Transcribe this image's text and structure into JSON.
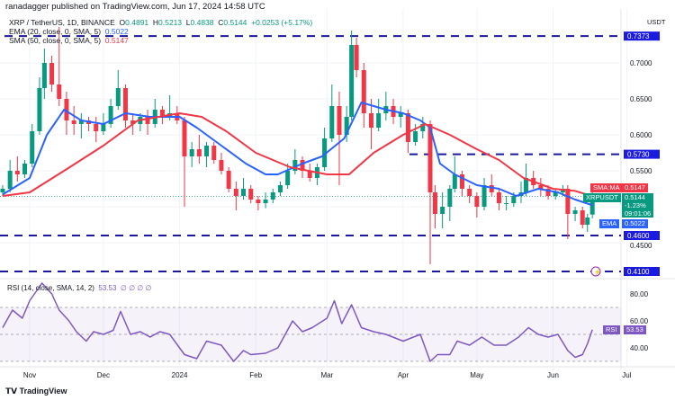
{
  "publisher": "ranadagger published on TradingView.com, Jun 17, 2024 14:58 UTC",
  "legend": {
    "symbol": "XRP / TetherUS, 1D, BINANCE",
    "open_label": "O",
    "open": "0.4891",
    "high_label": "H",
    "high": "0.5213",
    "low_label": "L",
    "low": "0.4838",
    "close_label": "C",
    "close": "0.5144",
    "change": "+0.0253 (+5.17%)",
    "ema_label": "EMA (20, close, 0, SMA, 5)",
    "ema_value": "0.5022",
    "sma_label": "SMA (50, close, 0, SMA, 5)",
    "sma_value": "0.5147",
    "rsi_label": "RSI (14, close, SMA, 14, 2)",
    "rsi_value": "53.53",
    "rsi_extra": "∅ ∅ ∅ ∅"
  },
  "price_axis": {
    "currency": "USDT",
    "ticks": [
      "0.7000",
      "0.6500",
      "0.6000",
      "0.5500",
      "0.4500"
    ],
    "levels": [
      "0.7373",
      "0.5730",
      "0.4600",
      "0.4100"
    ],
    "sma_tag": {
      "label": "SMA:MA",
      "value": "0.5147"
    },
    "price_tag": {
      "label": "XRPUSDT",
      "value": "0.5144",
      "change": "-1.23%",
      "countdown": "09:01:06"
    },
    "ema_tag": {
      "label": "EMA",
      "value": "0.5022"
    }
  },
  "rsi_axis": {
    "ticks": [
      "80.00",
      "60.00",
      "40.00"
    ],
    "tag_label": "RSI",
    "tag_value": "53.53"
  },
  "time_axis": [
    "Nov",
    "Dec",
    "2024",
    "Feb",
    "Mar",
    "Apr",
    "May",
    "Jun",
    "Jul"
  ],
  "footer": "TradingView",
  "colors": {
    "up": "#089981",
    "down": "#f23645",
    "ema": "#2962ff",
    "sma": "#f23645",
    "rsi": "#7e57c2",
    "levels": "#1a1aa0"
  },
  "icons": [
    "flash-event-icon",
    "tradingview-logo-icon"
  ],
  "chart_data": {
    "type": "candlestick",
    "title": "XRP / TetherUS, 1D, BINANCE",
    "ylabel": "USDT",
    "ylim": [
      0.4,
      0.75
    ],
    "grid": true,
    "horizontal_levels": [
      0.7373,
      0.573,
      0.46,
      0.41
    ],
    "last_price": 0.5144,
    "candles_columns": [
      "date",
      "open",
      "high",
      "low",
      "close"
    ],
    "candles": [
      [
        "2023-10-21",
        0.52,
        0.53,
        0.515,
        0.525
      ],
      [
        "2023-10-24",
        0.525,
        0.565,
        0.52,
        0.55
      ],
      [
        "2023-10-27",
        0.55,
        0.57,
        0.535,
        0.545
      ],
      [
        "2023-10-30",
        0.545,
        0.565,
        0.54,
        0.56
      ],
      [
        "2023-11-02",
        0.56,
        0.615,
        0.555,
        0.605
      ],
      [
        "2023-11-05",
        0.605,
        0.68,
        0.6,
        0.665
      ],
      [
        "2023-11-07",
        0.665,
        0.72,
        0.65,
        0.7
      ],
      [
        "2023-11-10",
        0.7,
        0.71,
        0.66,
        0.67
      ],
      [
        "2023-11-13",
        0.67,
        0.75,
        0.64,
        0.65
      ],
      [
        "2023-11-16",
        0.65,
        0.66,
        0.6,
        0.62
      ],
      [
        "2023-11-19",
        0.62,
        0.64,
        0.6,
        0.615
      ],
      [
        "2023-11-22",
        0.615,
        0.63,
        0.595,
        0.62
      ],
      [
        "2023-11-25",
        0.62,
        0.625,
        0.605,
        0.615
      ],
      [
        "2023-11-28",
        0.615,
        0.625,
        0.59,
        0.605
      ],
      [
        "2023-12-01",
        0.605,
        0.63,
        0.6,
        0.615
      ],
      [
        "2023-12-04",
        0.615,
        0.65,
        0.61,
        0.64
      ],
      [
        "2023-12-07",
        0.64,
        0.69,
        0.635,
        0.665
      ],
      [
        "2023-12-10",
        0.665,
        0.67,
        0.61,
        0.62
      ],
      [
        "2023-12-13",
        0.62,
        0.63,
        0.6,
        0.615
      ],
      [
        "2023-12-16",
        0.615,
        0.63,
        0.605,
        0.625
      ],
      [
        "2023-12-19",
        0.625,
        0.635,
        0.6,
        0.615
      ],
      [
        "2023-12-22",
        0.615,
        0.65,
        0.61,
        0.635
      ],
      [
        "2023-12-25",
        0.635,
        0.64,
        0.615,
        0.625
      ],
      [
        "2023-12-28",
        0.625,
        0.655,
        0.62,
        0.63
      ],
      [
        "2023-12-31",
        0.63,
        0.64,
        0.615,
        0.62
      ],
      [
        "2024-01-03",
        0.62,
        0.625,
        0.5,
        0.57
      ],
      [
        "2024-01-06",
        0.57,
        0.59,
        0.555,
        0.58
      ],
      [
        "2024-01-09",
        0.58,
        0.6,
        0.56,
        0.57
      ],
      [
        "2024-01-12",
        0.57,
        0.59,
        0.555,
        0.585
      ],
      [
        "2024-01-15",
        0.585,
        0.59,
        0.56,
        0.565
      ],
      [
        "2024-01-18",
        0.565,
        0.575,
        0.545,
        0.55
      ],
      [
        "2024-01-21",
        0.55,
        0.555,
        0.52,
        0.525
      ],
      [
        "2024-01-24",
        0.525,
        0.535,
        0.495,
        0.515
      ],
      [
        "2024-01-27",
        0.515,
        0.54,
        0.51,
        0.525
      ],
      [
        "2024-01-30",
        0.525,
        0.53,
        0.505,
        0.51
      ],
      [
        "2024-02-02",
        0.51,
        0.515,
        0.495,
        0.505
      ],
      [
        "2024-02-05",
        0.505,
        0.52,
        0.498,
        0.51
      ],
      [
        "2024-02-08",
        0.51,
        0.525,
        0.505,
        0.52
      ],
      [
        "2024-02-11",
        0.52,
        0.535,
        0.515,
        0.53
      ],
      [
        "2024-02-14",
        0.53,
        0.56,
        0.525,
        0.55
      ],
      [
        "2024-02-17",
        0.55,
        0.58,
        0.545,
        0.565
      ],
      [
        "2024-02-20",
        0.565,
        0.57,
        0.54,
        0.55
      ],
      [
        "2024-02-23",
        0.55,
        0.56,
        0.535,
        0.54
      ],
      [
        "2024-02-26",
        0.54,
        0.56,
        0.53,
        0.555
      ],
      [
        "2024-02-29",
        0.555,
        0.61,
        0.55,
        0.595
      ],
      [
        "2024-03-03",
        0.595,
        0.67,
        0.59,
        0.64
      ],
      [
        "2024-03-06",
        0.64,
        0.66,
        0.53,
        0.6
      ],
      [
        "2024-03-09",
        0.6,
        0.64,
        0.59,
        0.625
      ],
      [
        "2024-03-11",
        0.625,
        0.745,
        0.62,
        0.725
      ],
      [
        "2024-03-13",
        0.725,
        0.735,
        0.68,
        0.69
      ],
      [
        "2024-03-16",
        0.69,
        0.7,
        0.61,
        0.63
      ],
      [
        "2024-03-19",
        0.63,
        0.65,
        0.58,
        0.61
      ],
      [
        "2024-03-22",
        0.61,
        0.65,
        0.605,
        0.63
      ],
      [
        "2024-03-25",
        0.63,
        0.66,
        0.62,
        0.64
      ],
      [
        "2024-03-28",
        0.64,
        0.65,
        0.615,
        0.625
      ],
      [
        "2024-03-31",
        0.625,
        0.64,
        0.61,
        0.63
      ],
      [
        "2024-04-03",
        0.63,
        0.635,
        0.575,
        0.59
      ],
      [
        "2024-04-06",
        0.59,
        0.615,
        0.585,
        0.605
      ],
      [
        "2024-04-09",
        0.605,
        0.625,
        0.595,
        0.615
      ],
      [
        "2024-04-12",
        0.615,
        0.62,
        0.42,
        0.52
      ],
      [
        "2024-04-14",
        0.52,
        0.53,
        0.47,
        0.49
      ],
      [
        "2024-04-17",
        0.49,
        0.52,
        0.47,
        0.5
      ],
      [
        "2024-04-20",
        0.5,
        0.53,
        0.48,
        0.525
      ],
      [
        "2024-04-22",
        0.525,
        0.57,
        0.52,
        0.545
      ],
      [
        "2024-04-25",
        0.545,
        0.55,
        0.515,
        0.525
      ],
      [
        "2024-04-28",
        0.525,
        0.53,
        0.505,
        0.515
      ],
      [
        "2024-05-01",
        0.515,
        0.52,
        0.485,
        0.5
      ],
      [
        "2024-05-04",
        0.5,
        0.54,
        0.495,
        0.53
      ],
      [
        "2024-05-07",
        0.53,
        0.545,
        0.515,
        0.52
      ],
      [
        "2024-05-10",
        0.52,
        0.525,
        0.495,
        0.505
      ],
      [
        "2024-05-13",
        0.505,
        0.515,
        0.495,
        0.505
      ],
      [
        "2024-05-16",
        0.505,
        0.52,
        0.5,
        0.515
      ],
      [
        "2024-05-19",
        0.515,
        0.535,
        0.505,
        0.52
      ],
      [
        "2024-05-21",
        0.52,
        0.56,
        0.515,
        0.54
      ],
      [
        "2024-05-24",
        0.54,
        0.55,
        0.525,
        0.53
      ],
      [
        "2024-05-27",
        0.53,
        0.54,
        0.515,
        0.525
      ],
      [
        "2024-05-30",
        0.525,
        0.53,
        0.51,
        0.515
      ],
      [
        "2024-06-02",
        0.515,
        0.525,
        0.51,
        0.52
      ],
      [
        "2024-06-05",
        0.52,
        0.53,
        0.515,
        0.525
      ],
      [
        "2024-06-07",
        0.525,
        0.53,
        0.455,
        0.49
      ],
      [
        "2024-06-10",
        0.49,
        0.5,
        0.48,
        0.495
      ],
      [
        "2024-06-13",
        0.495,
        0.5,
        0.47,
        0.475
      ],
      [
        "2024-06-15",
        0.475,
        0.49,
        0.465,
        0.485
      ],
      [
        "2024-06-17",
        0.4891,
        0.5213,
        0.4838,
        0.5144
      ]
    ],
    "series": [
      {
        "name": "EMA (20, close, 0, SMA, 5)",
        "points": [
          [
            "2023-10-21",
            0.517
          ],
          [
            "2023-11-01",
            0.54
          ],
          [
            "2023-11-08",
            0.6
          ],
          [
            "2023-11-15",
            0.635
          ],
          [
            "2023-11-22",
            0.62
          ],
          [
            "2023-12-01",
            0.615
          ],
          [
            "2023-12-10",
            0.63
          ],
          [
            "2023-12-20",
            0.625
          ],
          [
            "2024-01-01",
            0.625
          ],
          [
            "2024-01-08",
            0.61
          ],
          [
            "2024-01-18",
            0.585
          ],
          [
            "2024-01-28",
            0.56
          ],
          [
            "2024-02-05",
            0.545
          ],
          [
            "2024-02-10",
            0.545
          ],
          [
            "2024-02-20",
            0.56
          ],
          [
            "2024-02-28",
            0.57
          ],
          [
            "2024-03-08",
            0.595
          ],
          [
            "2024-03-15",
            0.645
          ],
          [
            "2024-03-25",
            0.635
          ],
          [
            "2024-04-01",
            0.63
          ],
          [
            "2024-04-08",
            0.62
          ],
          [
            "2024-04-12",
            0.61
          ],
          [
            "2024-04-16",
            0.56
          ],
          [
            "2024-04-22",
            0.545
          ],
          [
            "2024-05-01",
            0.53
          ],
          [
            "2024-05-10",
            0.525
          ],
          [
            "2024-05-17",
            0.515
          ],
          [
            "2024-05-26",
            0.525
          ],
          [
            "2024-06-03",
            0.52
          ],
          [
            "2024-06-10",
            0.51
          ],
          [
            "2024-06-17",
            0.5022
          ]
        ]
      },
      {
        "name": "SMA (50, close, 0, SMA, 5)",
        "points": [
          [
            "2023-10-21",
            0.515
          ],
          [
            "2023-11-01",
            0.52
          ],
          [
            "2023-11-15",
            0.55
          ],
          [
            "2023-12-01",
            0.585
          ],
          [
            "2023-12-15",
            0.62
          ],
          [
            "2024-01-01",
            0.63
          ],
          [
            "2024-01-10",
            0.625
          ],
          [
            "2024-01-20",
            0.605
          ],
          [
            "2024-02-01",
            0.575
          ],
          [
            "2024-02-15",
            0.555
          ],
          [
            "2024-03-01",
            0.545
          ],
          [
            "2024-03-10",
            0.545
          ],
          [
            "2024-03-20",
            0.575
          ],
          [
            "2024-04-01",
            0.6
          ],
          [
            "2024-04-10",
            0.615
          ],
          [
            "2024-04-20",
            0.6
          ],
          [
            "2024-05-01",
            0.58
          ],
          [
            "2024-05-10",
            0.565
          ],
          [
            "2024-05-20",
            0.54
          ],
          [
            "2024-06-01",
            0.525
          ],
          [
            "2024-06-10",
            0.522
          ],
          [
            "2024-06-17",
            0.5147
          ]
        ]
      }
    ],
    "rsi": {
      "name": "RSI (14, close, SMA, 14, 2)",
      "ylim": [
        25,
        90
      ],
      "bands": [
        30,
        50,
        70
      ],
      "points": [
        [
          "2023-10-21",
          55
        ],
        [
          "2023-10-25",
          68
        ],
        [
          "2023-10-29",
          62
        ],
        [
          "2023-11-01",
          75
        ],
        [
          "2023-11-06",
          88
        ],
        [
          "2023-11-10",
          80
        ],
        [
          "2023-11-13",
          68
        ],
        [
          "2023-11-17",
          60
        ],
        [
          "2023-11-20",
          52
        ],
        [
          "2023-11-24",
          45
        ],
        [
          "2023-11-27",
          52
        ],
        [
          "2023-12-01",
          50
        ],
        [
          "2023-12-05",
          53
        ],
        [
          "2023-12-08",
          67
        ],
        [
          "2023-12-12",
          50
        ],
        [
          "2023-12-16",
          52
        ],
        [
          "2023-12-20",
          48
        ],
        [
          "2023-12-24",
          52
        ],
        [
          "2023-12-28",
          50
        ],
        [
          "2024-01-03",
          35
        ],
        [
          "2024-01-08",
          32
        ],
        [
          "2024-01-12",
          45
        ],
        [
          "2024-01-18",
          42
        ],
        [
          "2024-01-23",
          30
        ],
        [
          "2024-01-27",
          38
        ],
        [
          "2024-01-30",
          35
        ],
        [
          "2024-02-05",
          36
        ],
        [
          "2024-02-10",
          40
        ],
        [
          "2024-02-16",
          60
        ],
        [
          "2024-02-20",
          52
        ],
        [
          "2024-02-24",
          55
        ],
        [
          "2024-03-01",
          62
        ],
        [
          "2024-03-04",
          75
        ],
        [
          "2024-03-07",
          58
        ],
        [
          "2024-03-11",
          72
        ],
        [
          "2024-03-15",
          55
        ],
        [
          "2024-03-20",
          52
        ],
        [
          "2024-03-25",
          50
        ],
        [
          "2024-04-01",
          45
        ],
        [
          "2024-04-08",
          50
        ],
        [
          "2024-04-12",
          30
        ],
        [
          "2024-04-15",
          35
        ],
        [
          "2024-04-20",
          35
        ],
        [
          "2024-04-23",
          45
        ],
        [
          "2024-04-28",
          42
        ],
        [
          "2024-05-03",
          48
        ],
        [
          "2024-05-08",
          42
        ],
        [
          "2024-05-13",
          42
        ],
        [
          "2024-05-18",
          48
        ],
        [
          "2024-05-22",
          55
        ],
        [
          "2024-05-26",
          50
        ],
        [
          "2024-05-30",
          48
        ],
        [
          "2024-06-03",
          50
        ],
        [
          "2024-06-07",
          38
        ],
        [
          "2024-06-10",
          33
        ],
        [
          "2024-06-13",
          35
        ],
        [
          "2024-06-15",
          43
        ],
        [
          "2024-06-17",
          53.53
        ]
      ]
    }
  }
}
